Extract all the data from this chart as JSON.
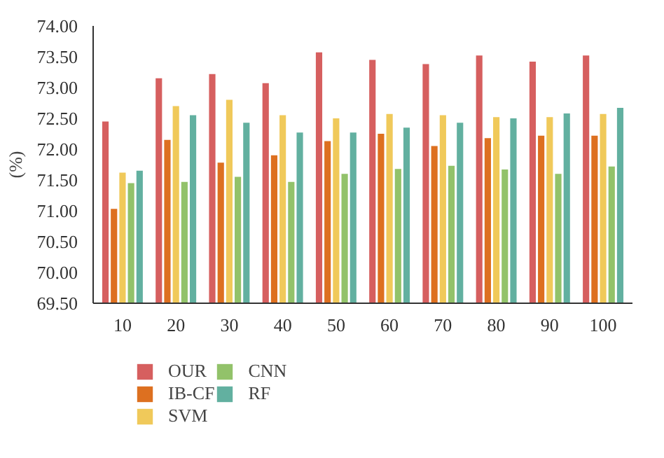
{
  "chart_data": {
    "type": "bar",
    "ylabel": "(%)",
    "categories": [
      "10",
      "20",
      "30",
      "40",
      "50",
      "60",
      "70",
      "80",
      "90",
      "100"
    ],
    "ylim": [
      69.5,
      74.0
    ],
    "yticks": [
      {
        "value": 69.5,
        "label": "69.50"
      },
      {
        "value": 70.0,
        "label": "70.00"
      },
      {
        "value": 70.5,
        "label": "70.50"
      },
      {
        "value": 71.0,
        "label": "71.00"
      },
      {
        "value": 71.5,
        "label": "71.50"
      },
      {
        "value": 72.0,
        "label": "72.00"
      },
      {
        "value": 72.5,
        "label": "72.50"
      },
      {
        "value": 73.0,
        "label": "73.00"
      },
      {
        "value": 73.5,
        "label": "73.50"
      },
      {
        "value": 74.0,
        "label": "74.00"
      }
    ],
    "grid": false,
    "legend": "bottom",
    "series": [
      {
        "name": "OUR",
        "color": "#d65f5f",
        "values": [
          72.45,
          73.15,
          73.22,
          73.07,
          73.57,
          73.45,
          73.38,
          73.52,
          73.42,
          73.52
        ]
      },
      {
        "name": "IB-CF",
        "color": "#dd7020",
        "values": [
          71.03,
          72.15,
          71.78,
          71.9,
          72.13,
          72.25,
          72.05,
          72.18,
          72.22,
          72.22
        ]
      },
      {
        "name": "SVM",
        "color": "#f0c95a",
        "values": [
          71.62,
          72.7,
          72.8,
          72.55,
          72.5,
          72.57,
          72.55,
          72.52,
          72.52,
          72.57
        ]
      },
      {
        "name": "CNN",
        "color": "#92c26a",
        "values": [
          71.45,
          71.47,
          71.55,
          71.47,
          71.6,
          71.68,
          71.73,
          71.67,
          71.6,
          71.72
        ]
      },
      {
        "name": "RF",
        "color": "#62b0a0",
        "values": [
          71.65,
          72.55,
          72.43,
          72.27,
          72.27,
          72.35,
          72.43,
          72.5,
          72.58,
          72.67
        ]
      }
    ]
  }
}
